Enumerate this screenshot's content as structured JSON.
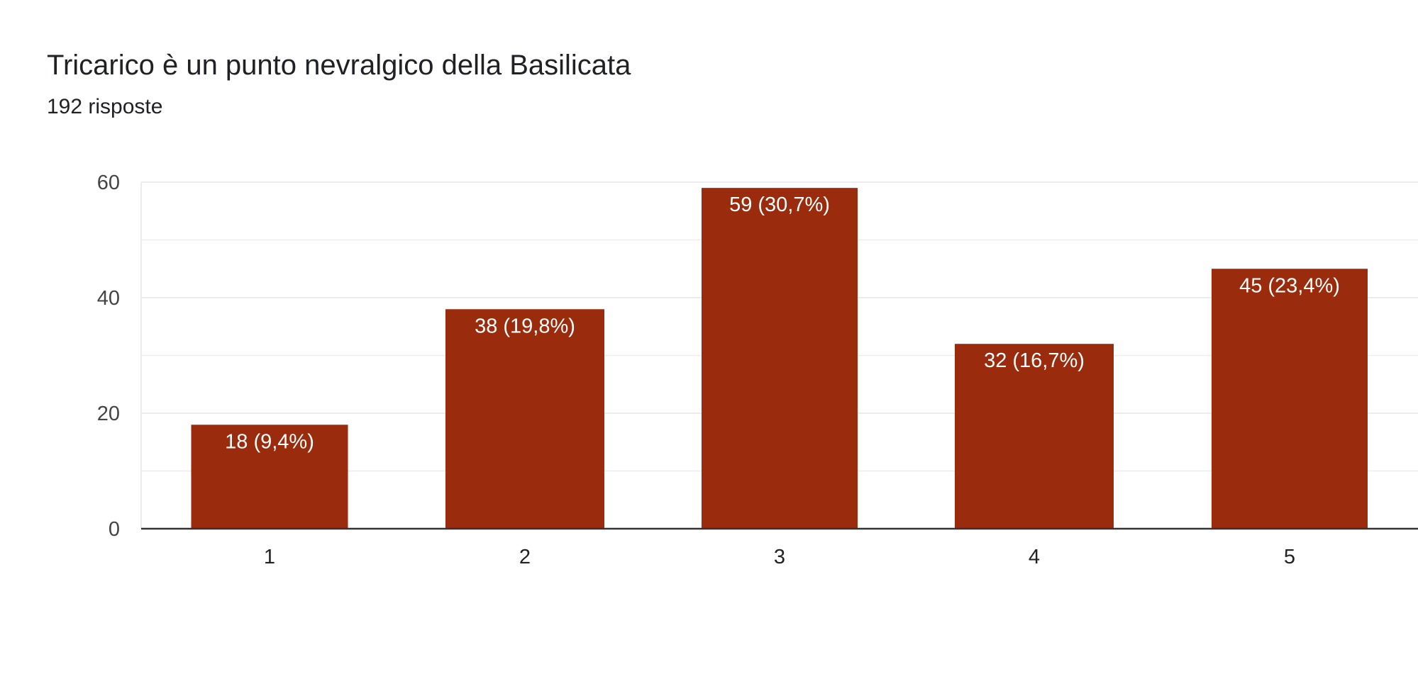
{
  "header": {
    "title": "Tricarico è un punto nevralgico della Basilicata",
    "subtitle": "192 risposte"
  },
  "chart_data": {
    "type": "bar",
    "title": "Tricarico è un punto nevralgico della Basilicata",
    "subtitle": "192 risposte",
    "categories": [
      "1",
      "2",
      "3",
      "4",
      "5"
    ],
    "values": [
      18,
      38,
      59,
      32,
      45
    ],
    "data_labels": [
      "18 (9,4%)",
      "38 (19,8%)",
      "59 (30,7%)",
      "32 (16,7%)",
      "45 (23,4%)"
    ],
    "ylim": [
      0,
      60
    ],
    "yticks": [
      0,
      20,
      40,
      60
    ],
    "xlabel": "",
    "ylabel": "",
    "grid": true,
    "colors": {
      "bar": "#9a2b0c",
      "grid": "#ececec",
      "axis": "#333333"
    }
  }
}
